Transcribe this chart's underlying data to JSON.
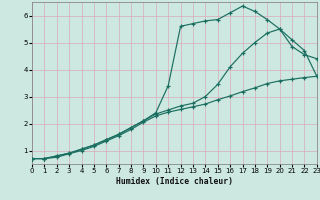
{
  "xlabel": "Humidex (Indice chaleur)",
  "bg_color": "#cce8e0",
  "grid_color": "#c8ddd8",
  "line_color": "#1a6e60",
  "xlim": [
    0,
    23
  ],
  "ylim": [
    0.5,
    6.5
  ],
  "xticks": [
    0,
    1,
    2,
    3,
    4,
    5,
    6,
    7,
    8,
    9,
    10,
    11,
    12,
    13,
    14,
    15,
    16,
    17,
    18,
    19,
    20,
    21,
    22,
    23
  ],
  "yticks": [
    1,
    2,
    3,
    4,
    5,
    6
  ],
  "line1_x": [
    0,
    1,
    2,
    3,
    4,
    5,
    6,
    7,
    8,
    9,
    10,
    11,
    12,
    13,
    14,
    15,
    16,
    17,
    18,
    19,
    20,
    21,
    22,
    23
  ],
  "line1_y": [
    0.7,
    0.7,
    0.8,
    0.9,
    1.05,
    1.2,
    1.4,
    1.6,
    1.85,
    2.1,
    2.4,
    3.4,
    5.6,
    5.7,
    5.8,
    5.85,
    6.1,
    6.35,
    6.15,
    5.85,
    5.5,
    4.85,
    4.55,
    4.4
  ],
  "line2_x": [
    0,
    1,
    2,
    3,
    4,
    5,
    6,
    7,
    8,
    9,
    10,
    11,
    12,
    13,
    14,
    15,
    16,
    17,
    18,
    19,
    20,
    21,
    22,
    23
  ],
  "line2_y": [
    0.7,
    0.7,
    0.8,
    0.9,
    1.05,
    1.2,
    1.4,
    1.6,
    1.85,
    2.1,
    2.35,
    2.5,
    2.65,
    2.75,
    3.0,
    3.45,
    4.1,
    4.6,
    5.0,
    5.35,
    5.5,
    5.1,
    4.7,
    3.75
  ],
  "line3_x": [
    0,
    1,
    2,
    3,
    4,
    5,
    6,
    7,
    8,
    9,
    10,
    11,
    12,
    13,
    14,
    15,
    16,
    17,
    18,
    19,
    20,
    21,
    22,
    23
  ],
  "line3_y": [
    0.7,
    0.7,
    0.75,
    0.88,
    1.0,
    1.15,
    1.35,
    1.55,
    1.78,
    2.05,
    2.28,
    2.42,
    2.52,
    2.62,
    2.72,
    2.88,
    3.02,
    3.18,
    3.32,
    3.48,
    3.58,
    3.64,
    3.7,
    3.75
  ]
}
